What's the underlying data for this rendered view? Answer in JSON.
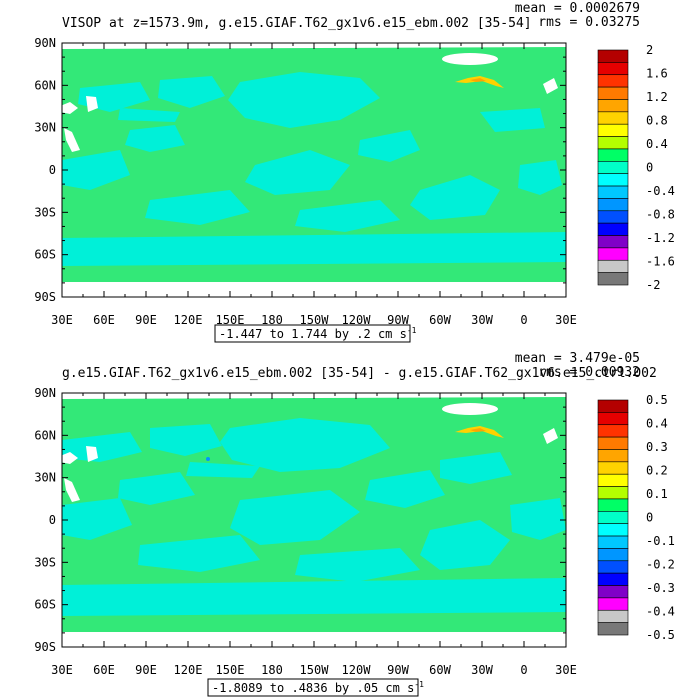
{
  "chart_data": [
    {
      "type": "heatmap",
      "title": "VISOP at z=1573.9m, g.e15.GIAF.T62_gx1v6.e15_ebm.002 [35-54]",
      "stats": [
        "mean = 0.0002679",
        "rms = 0.03275"
      ],
      "range_label": "-1.447 to 1.744 by .2 cm s",
      "range_unit_exp": "-1",
      "xticks": [
        "30E",
        "60E",
        "90E",
        "120E",
        "150E",
        "180",
        "150W",
        "120W",
        "90W",
        "60W",
        "30W",
        "0",
        "30E"
      ],
      "yticks": [
        "90N",
        "60N",
        "30N",
        "0",
        "30S",
        "60S",
        "90S"
      ],
      "colorbar": {
        "labels": [
          "2",
          "1.6",
          "1.2",
          "0.8",
          "0.4",
          "0",
          "-0.4",
          "-0.8",
          "-1.2",
          "-1.6",
          "-2"
        ],
        "colors": [
          "#b40000",
          "#e60000",
          "#ff3300",
          "#ff7a00",
          "#ffa500",
          "#ffd200",
          "#ffff00",
          "#b4ff00",
          "#00ff66",
          "#00ffc8",
          "#00ffff",
          "#00c8ff",
          "#0096ff",
          "#0050ff",
          "#0000ff",
          "#8000c8",
          "#ff00ff",
          "#c8c8c8",
          "#787878"
        ]
      },
      "dominant_colors": {
        "ocean_near_zero": "#33e878",
        "ocean_negative": "#00f0d8",
        "land": "#ffffff"
      }
    },
    {
      "type": "heatmap",
      "title": "g.e15.GIAF.T62_gx1v6.e15_ebm.002 [35-54] - g.e15.GIAF.T62_gx1v6.e15_ctrl.002",
      "stats": [
        "mean = 3.479e-05",
        "rms = 0.00932"
      ],
      "range_label": "-1.8089 to .4836 by .05 cm s",
      "range_unit_exp": "-1",
      "xticks": [
        "30E",
        "60E",
        "90E",
        "120E",
        "150E",
        "180",
        "150W",
        "120W",
        "90W",
        "60W",
        "30W",
        "0",
        "30E"
      ],
      "yticks": [
        "90N",
        "60N",
        "30N",
        "0",
        "30S",
        "60S",
        "90S"
      ],
      "colorbar": {
        "labels": [
          "0.5",
          "0.4",
          "0.3",
          "0.2",
          "0.1",
          "0",
          "-0.1",
          "-0.2",
          "-0.3",
          "-0.4",
          "-0.5"
        ],
        "colors": [
          "#b40000",
          "#e60000",
          "#ff3300",
          "#ff7a00",
          "#ffa500",
          "#ffd200",
          "#ffff00",
          "#b4ff00",
          "#00ff66",
          "#00ffc8",
          "#00ffff",
          "#00c8ff",
          "#0096ff",
          "#0050ff",
          "#0000ff",
          "#8000c8",
          "#ff00ff",
          "#c8c8c8",
          "#787878"
        ]
      },
      "dominant_colors": {
        "ocean_near_zero": "#33e878",
        "ocean_negative": "#00f0d8",
        "land": "#ffffff"
      }
    }
  ]
}
